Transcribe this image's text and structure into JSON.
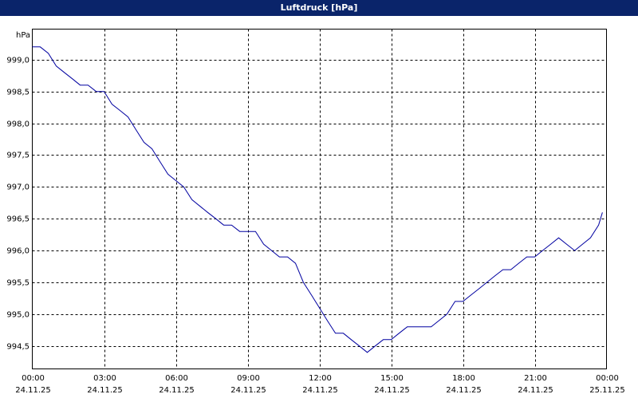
{
  "chart_data": {
    "type": "line",
    "title": "Luftdruck [hPa]",
    "y_unit": "hPa",
    "x": [
      0,
      0.33,
      0.67,
      1,
      1.33,
      1.67,
      2,
      2.33,
      2.67,
      3,
      3.33,
      3.67,
      4,
      4.33,
      4.67,
      5,
      5.33,
      5.67,
      6,
      6.33,
      6.67,
      7,
      7.33,
      7.67,
      8,
      8.33,
      8.67,
      9,
      9.33,
      9.67,
      10,
      10.33,
      10.67,
      11,
      11.33,
      11.67,
      12,
      12.33,
      12.67,
      13,
      13.33,
      13.67,
      14,
      14.33,
      14.67,
      15,
      15.33,
      15.67,
      16,
      16.33,
      16.67,
      17,
      17.33,
      17.67,
      18,
      18.33,
      18.67,
      19,
      19.33,
      19.67,
      20,
      20.33,
      20.67,
      21,
      21.33,
      21.67,
      22,
      22.33,
      22.67,
      23,
      23.33,
      23.67,
      23.83
    ],
    "series": [
      {
        "color": "#0000a0",
        "values": [
          999.2,
          999.2,
          999.1,
          998.9,
          998.8,
          998.7,
          998.6,
          998.6,
          998.5,
          998.5,
          998.3,
          998.2,
          998.1,
          997.9,
          997.7,
          997.6,
          997.4,
          997.2,
          997.1,
          997.0,
          996.8,
          996.7,
          996.6,
          996.5,
          996.4,
          996.4,
          996.3,
          996.3,
          996.3,
          996.1,
          996.0,
          995.9,
          995.9,
          995.8,
          995.5,
          995.3,
          995.1,
          994.9,
          994.7,
          994.7,
          994.6,
          994.5,
          994.4,
          994.5,
          994.6,
          994.6,
          994.7,
          994.8,
          994.8,
          994.8,
          994.8,
          994.9,
          995.0,
          995.2,
          995.2,
          995.3,
          995.4,
          995.5,
          995.6,
          995.7,
          995.7,
          995.8,
          995.9,
          995.9,
          996.0,
          996.1,
          996.2,
          996.1,
          996.0,
          996.1,
          996.2,
          996.4,
          996.6
        ]
      }
    ],
    "xlim": [
      0,
      24
    ],
    "xticks": [
      {
        "value": 0,
        "label": "00:00",
        "date": "24.11.25"
      },
      {
        "value": 3,
        "label": "03:00",
        "date": "24.11.25"
      },
      {
        "value": 6,
        "label": "06:00",
        "date": "24.11.25"
      },
      {
        "value": 9,
        "label": "09:00",
        "date": "24.11.25"
      },
      {
        "value": 12,
        "label": "12:00",
        "date": "24.11.25"
      },
      {
        "value": 15,
        "label": "15:00",
        "date": "24.11.25"
      },
      {
        "value": 18,
        "label": "18:00",
        "date": "24.11.25"
      },
      {
        "value": 21,
        "label": "21:00",
        "date": "24.11.25"
      },
      {
        "value": 24,
        "label": "00:00",
        "date": "25.11.25"
      }
    ],
    "ylim": [
      994.14,
      999.48
    ],
    "yticks": [
      {
        "value": 994.5,
        "label": "994,5"
      },
      {
        "value": 995,
        "label": "995,0"
      },
      {
        "value": 995.5,
        "label": "995,5"
      },
      {
        "value": 996,
        "label": "996,0"
      },
      {
        "value": 996.5,
        "label": "996,5"
      },
      {
        "value": 997,
        "label": "997,0"
      },
      {
        "value": 997.5,
        "label": "997,5"
      },
      {
        "value": 998,
        "label": "998,0"
      },
      {
        "value": 998.5,
        "label": "998,5"
      },
      {
        "value": 999,
        "label": "999,0"
      }
    ],
    "grid": true
  }
}
